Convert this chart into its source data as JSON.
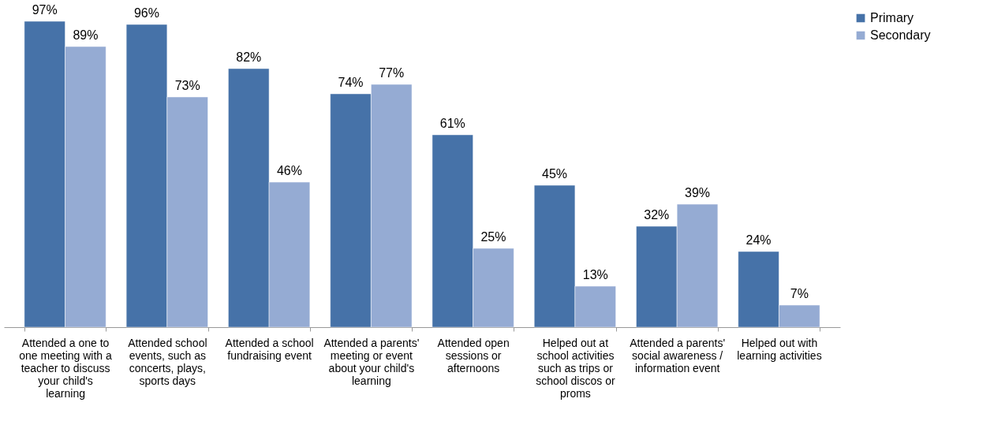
{
  "chart_data": {
    "type": "bar",
    "categories": [
      "Attended a one to one meeting with a teacher to discuss your child's learning",
      "Attended school events, such as concerts, plays, sports days",
      "Attended a school fundraising event",
      "Attended a parents' meeting or event about your child's learning",
      "Attended open sessions or afternoons",
      "Helped out at school activities such as trips or school discos or proms",
      "Attended a parents' social awareness / information event",
      "Helped out with learning activities"
    ],
    "series": [
      {
        "name": "Primary",
        "color": "#4672a8",
        "values": [
          97,
          96,
          82,
          74,
          61,
          45,
          32,
          24
        ],
        "value_labels": [
          "97%",
          "96%",
          "82%",
          "74%",
          "61%",
          "45%",
          "32%",
          "24%"
        ]
      },
      {
        "name": "Secondary",
        "color": "#95abd3",
        "values": [
          89,
          73,
          46,
          77,
          25,
          13,
          39,
          7
        ],
        "value_labels": [
          "89%",
          "73%",
          "46%",
          "77%",
          "25%",
          "13%",
          "39%",
          "7%"
        ]
      }
    ],
    "legend": "top right",
    "grid": false,
    "tick_labels": "x"
  }
}
